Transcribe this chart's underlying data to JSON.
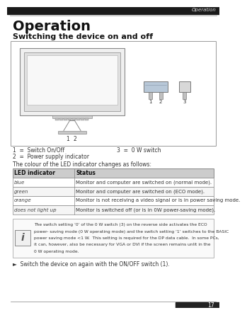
{
  "page_label": "Operation",
  "page_number": "17",
  "title": "Operation",
  "subtitle": "Switching the device on and off",
  "caption_line1": "1  =  Switch On/Off",
  "caption_line2": "2  =  Power supply indicator",
  "caption_line3": "3  =  0 W switch",
  "led_text_intro": "The colour of the LED indicator changes as follows:",
  "table_headers": [
    "LED indicator",
    "Status"
  ],
  "table_rows": [
    [
      "blue",
      "Monitor and computer are switched on (normal mode)."
    ],
    [
      "green",
      "Monitor and computer are switched on (ECO mode)."
    ],
    [
      "orange",
      "Monitor is not receiving a video signal or is in power saving mode."
    ],
    [
      "does not light up",
      "Monitor is switched off (or is in 0W power-saving mode)."
    ]
  ],
  "info_text_lines": [
    "The switch setting ‘0’ of the 0 W switch (3) on the reverse side activates the ECO",
    "power- saving mode (0 W operating mode) and the switch setting ‘1’ switches to the BASIC",
    "power saving mode <1 W.  This setting is required for the DP data cable.  In some PCs,",
    "it can, however, also be necessary for VGA or DVI if the screen remains unlit in the",
    "0 W operating mode."
  ],
  "bullet_text": "Switch the device on again with the ON/OFF switch (1).",
  "page_bg": "#ffffff",
  "header_line_color": "#aaaaaa",
  "table_border": "#888888",
  "table_header_bg": "#cccccc",
  "info_box_border": "#aaaaaa",
  "info_icon_border": "#888888"
}
